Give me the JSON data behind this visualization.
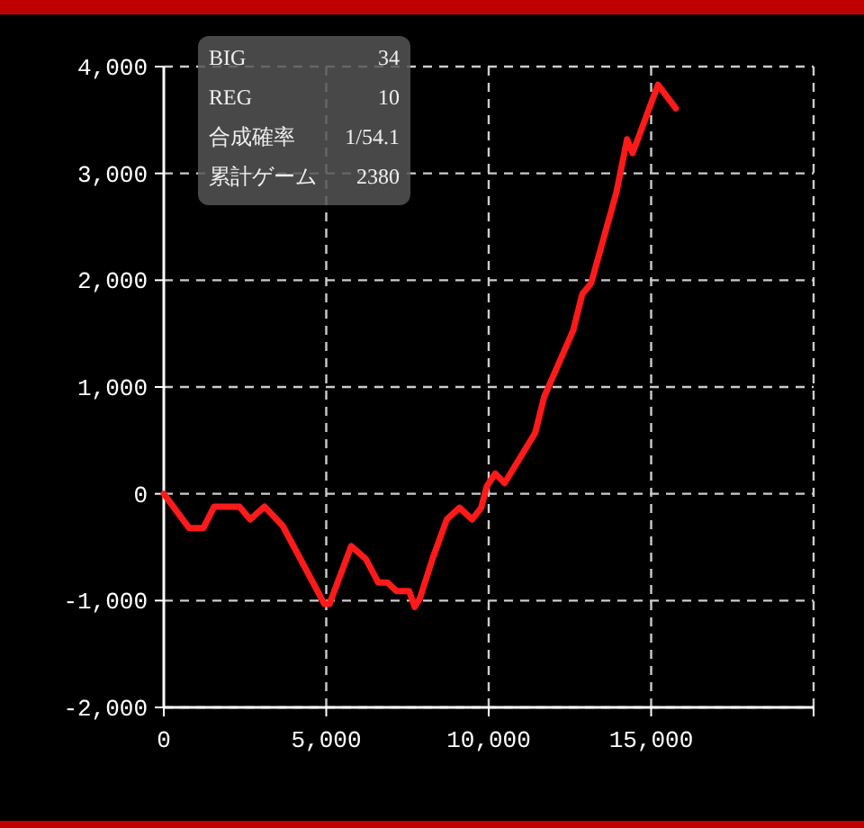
{
  "chart_data": {
    "type": "line",
    "x": [
      0,
      777,
      1220,
      1550,
      2330,
      2660,
      3100,
      3660,
      4940,
      5100,
      5770,
      6220,
      6600,
      6880,
      7160,
      7550,
      7720,
      7880,
      8270,
      8710,
      9100,
      9490,
      9770,
      9940,
      10200,
      10490,
      11430,
      11710,
      12600,
      12880,
      13150,
      13930,
      14260,
      14430,
      15210,
      15760
    ],
    "series": [
      {
        "color": "#ff1a1a",
        "values": [
          0,
          -320,
          -320,
          -120,
          -120,
          -240,
          -120,
          -300,
          -1030,
          -1030,
          -490,
          -610,
          -830,
          -830,
          -910,
          -910,
          -1060,
          -980,
          -610,
          -240,
          -130,
          -240,
          -130,
          70,
          190,
          100,
          570,
          910,
          1530,
          1870,
          1970,
          2820,
          3320,
          3190,
          3830,
          3610
        ]
      }
    ],
    "xlim": [
      0,
      20000
    ],
    "ylim": [
      -2000,
      4000
    ],
    "xticks": [
      0,
      {
        "value": 5000,
        "label": "5,000"
      },
      {
        "value": 10000,
        "label": "10,000"
      },
      {
        "value": 15000,
        "label": "15,000"
      },
      {
        "value": 20000,
        "label": null
      }
    ],
    "yticks": [
      {
        "value": -2000,
        "label": "-2,000"
      },
      {
        "value": -1000,
        "label": "-1,000"
      },
      0,
      {
        "value": 1000,
        "label": "1,000"
      },
      {
        "value": 2000,
        "label": "2,000"
      },
      {
        "value": 3000,
        "label": "3,000"
      },
      {
        "value": 4000,
        "label": "4,000"
      }
    ],
    "grid": true,
    "marker": "none",
    "line_style": "solid",
    "annotations": [
      "BIG",
      "34",
      "REG",
      "10",
      "合成確率",
      "1/54.1",
      "累計ゲーム",
      "2380"
    ]
  }
}
